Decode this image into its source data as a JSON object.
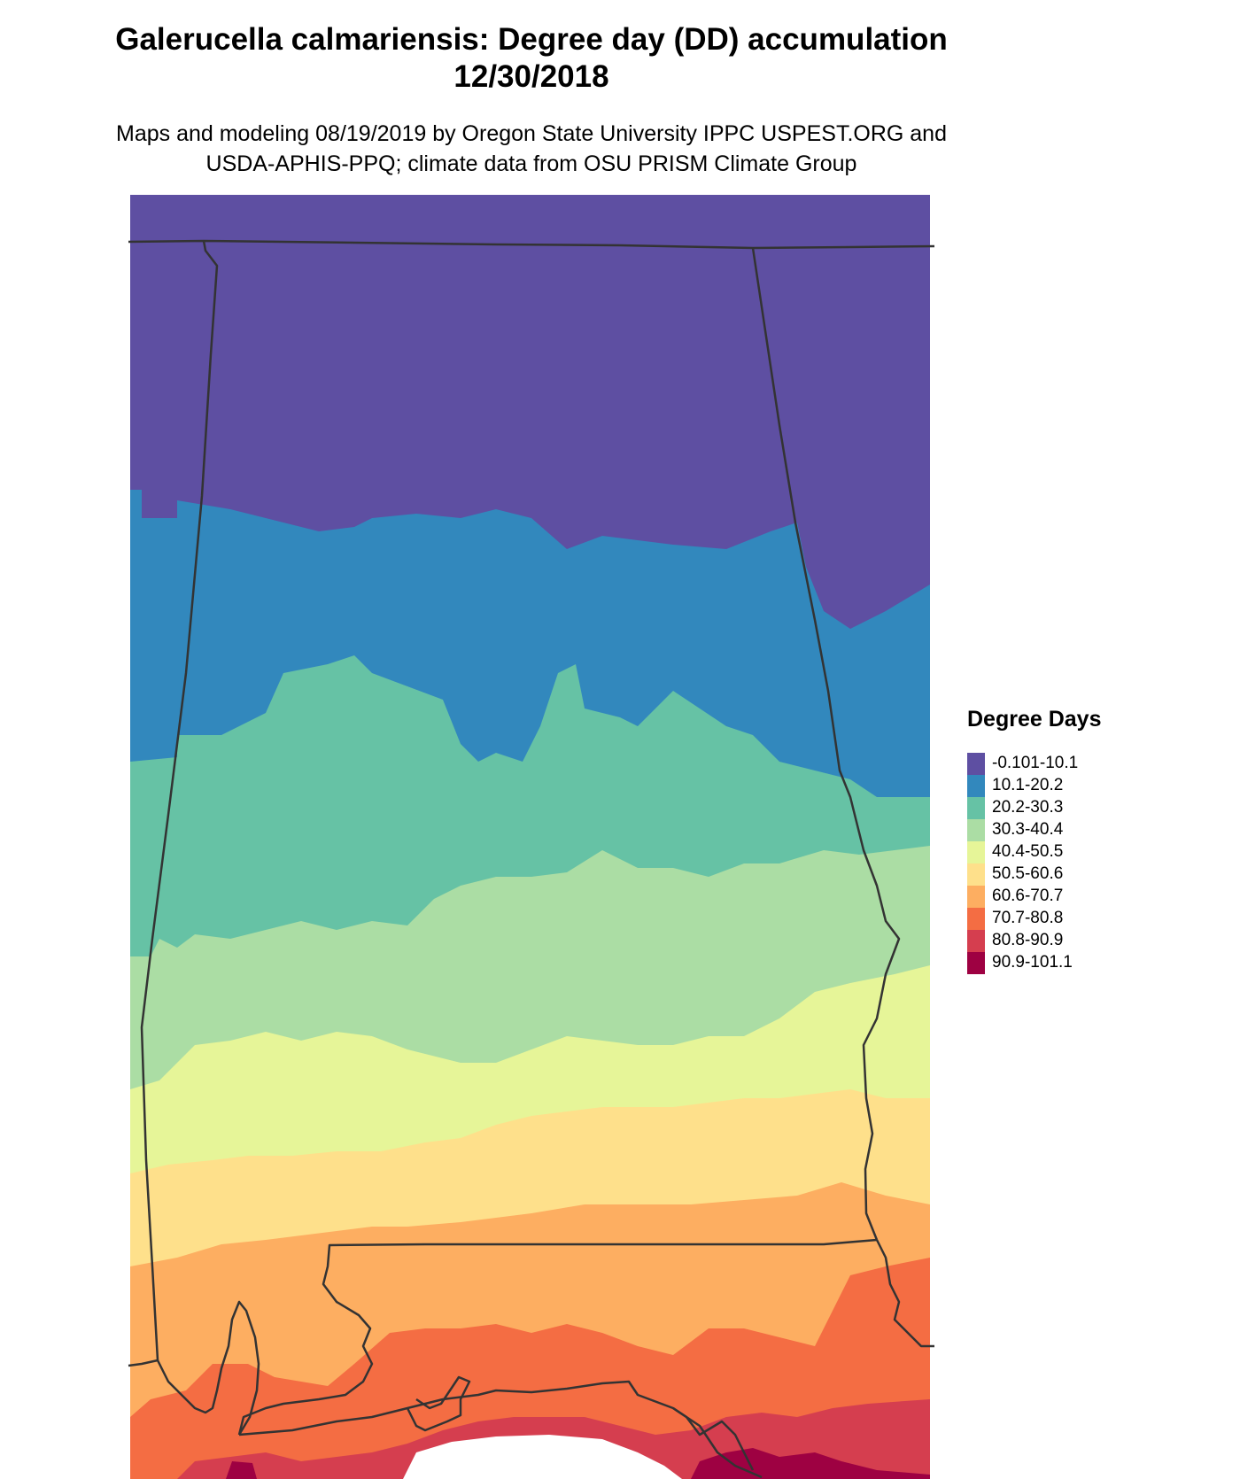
{
  "title": {
    "line1": "Galerucella calmariensis: Degree day (DD) accumulation",
    "line2": "12/30/2018"
  },
  "subtitle": {
    "line1": "Maps and modeling 08/19/2019 by Oregon State University IPPC USPEST.ORG and",
    "line2": "USDA-APHIS-PPQ; climate data from OSU PRISM Climate Group"
  },
  "legend": {
    "title": "Degree Days",
    "items": [
      {
        "label": "-0.101-10.1",
        "color": "#5E4FA2"
      },
      {
        "label": "10.1-20.2",
        "color": "#3288BD"
      },
      {
        "label": "20.2-30.3",
        "color": "#66C2A5"
      },
      {
        "label": "30.3-40.4",
        "color": "#ABDDA4"
      },
      {
        "label": "40.4-50.5",
        "color": "#E6F598"
      },
      {
        "label": "50.5-60.6",
        "color": "#FEE08B"
      },
      {
        "label": "60.6-70.7",
        "color": "#FDAE61"
      },
      {
        "label": "70.7-80.8",
        "color": "#F46D43"
      },
      {
        "label": "80.8-90.9",
        "color": "#D53E4F"
      },
      {
        "label": "90.9-101.1",
        "color": "#9E0142"
      }
    ]
  }
}
